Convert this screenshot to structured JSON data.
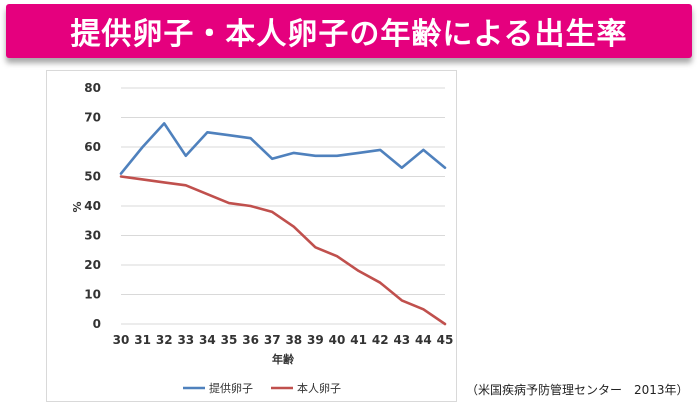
{
  "title": "提供卵子・本人卵子の年齢による出生率",
  "source": "（米国疾病予防管理センター　2013年）",
  "colors": {
    "banner": "#e5007e",
    "donor": "#4f81bd",
    "own": "#c0504d",
    "grid": "#d9d9d9"
  },
  "chart_data": {
    "type": "line",
    "x": [
      30,
      31,
      32,
      33,
      34,
      35,
      36,
      37,
      38,
      39,
      40,
      41,
      42,
      43,
      44,
      45
    ],
    "xlabel": "年齢",
    "ylabel": "%",
    "ylim": [
      0,
      80
    ],
    "yticks": [
      0,
      10,
      20,
      30,
      40,
      50,
      60,
      70,
      80
    ],
    "grid": true,
    "legend": "bottom",
    "series": [
      {
        "name": "提供卵子",
        "color": "#4f81bd",
        "values": [
          51,
          60,
          68,
          57,
          65,
          64,
          63,
          56,
          58,
          57,
          57,
          58,
          59,
          53,
          59,
          53
        ]
      },
      {
        "name": "本人卵子",
        "color": "#c0504d",
        "values": [
          50,
          49,
          48,
          47,
          44,
          41,
          40,
          38,
          33,
          26,
          23,
          18,
          14,
          8,
          5,
          0
        ]
      }
    ]
  }
}
